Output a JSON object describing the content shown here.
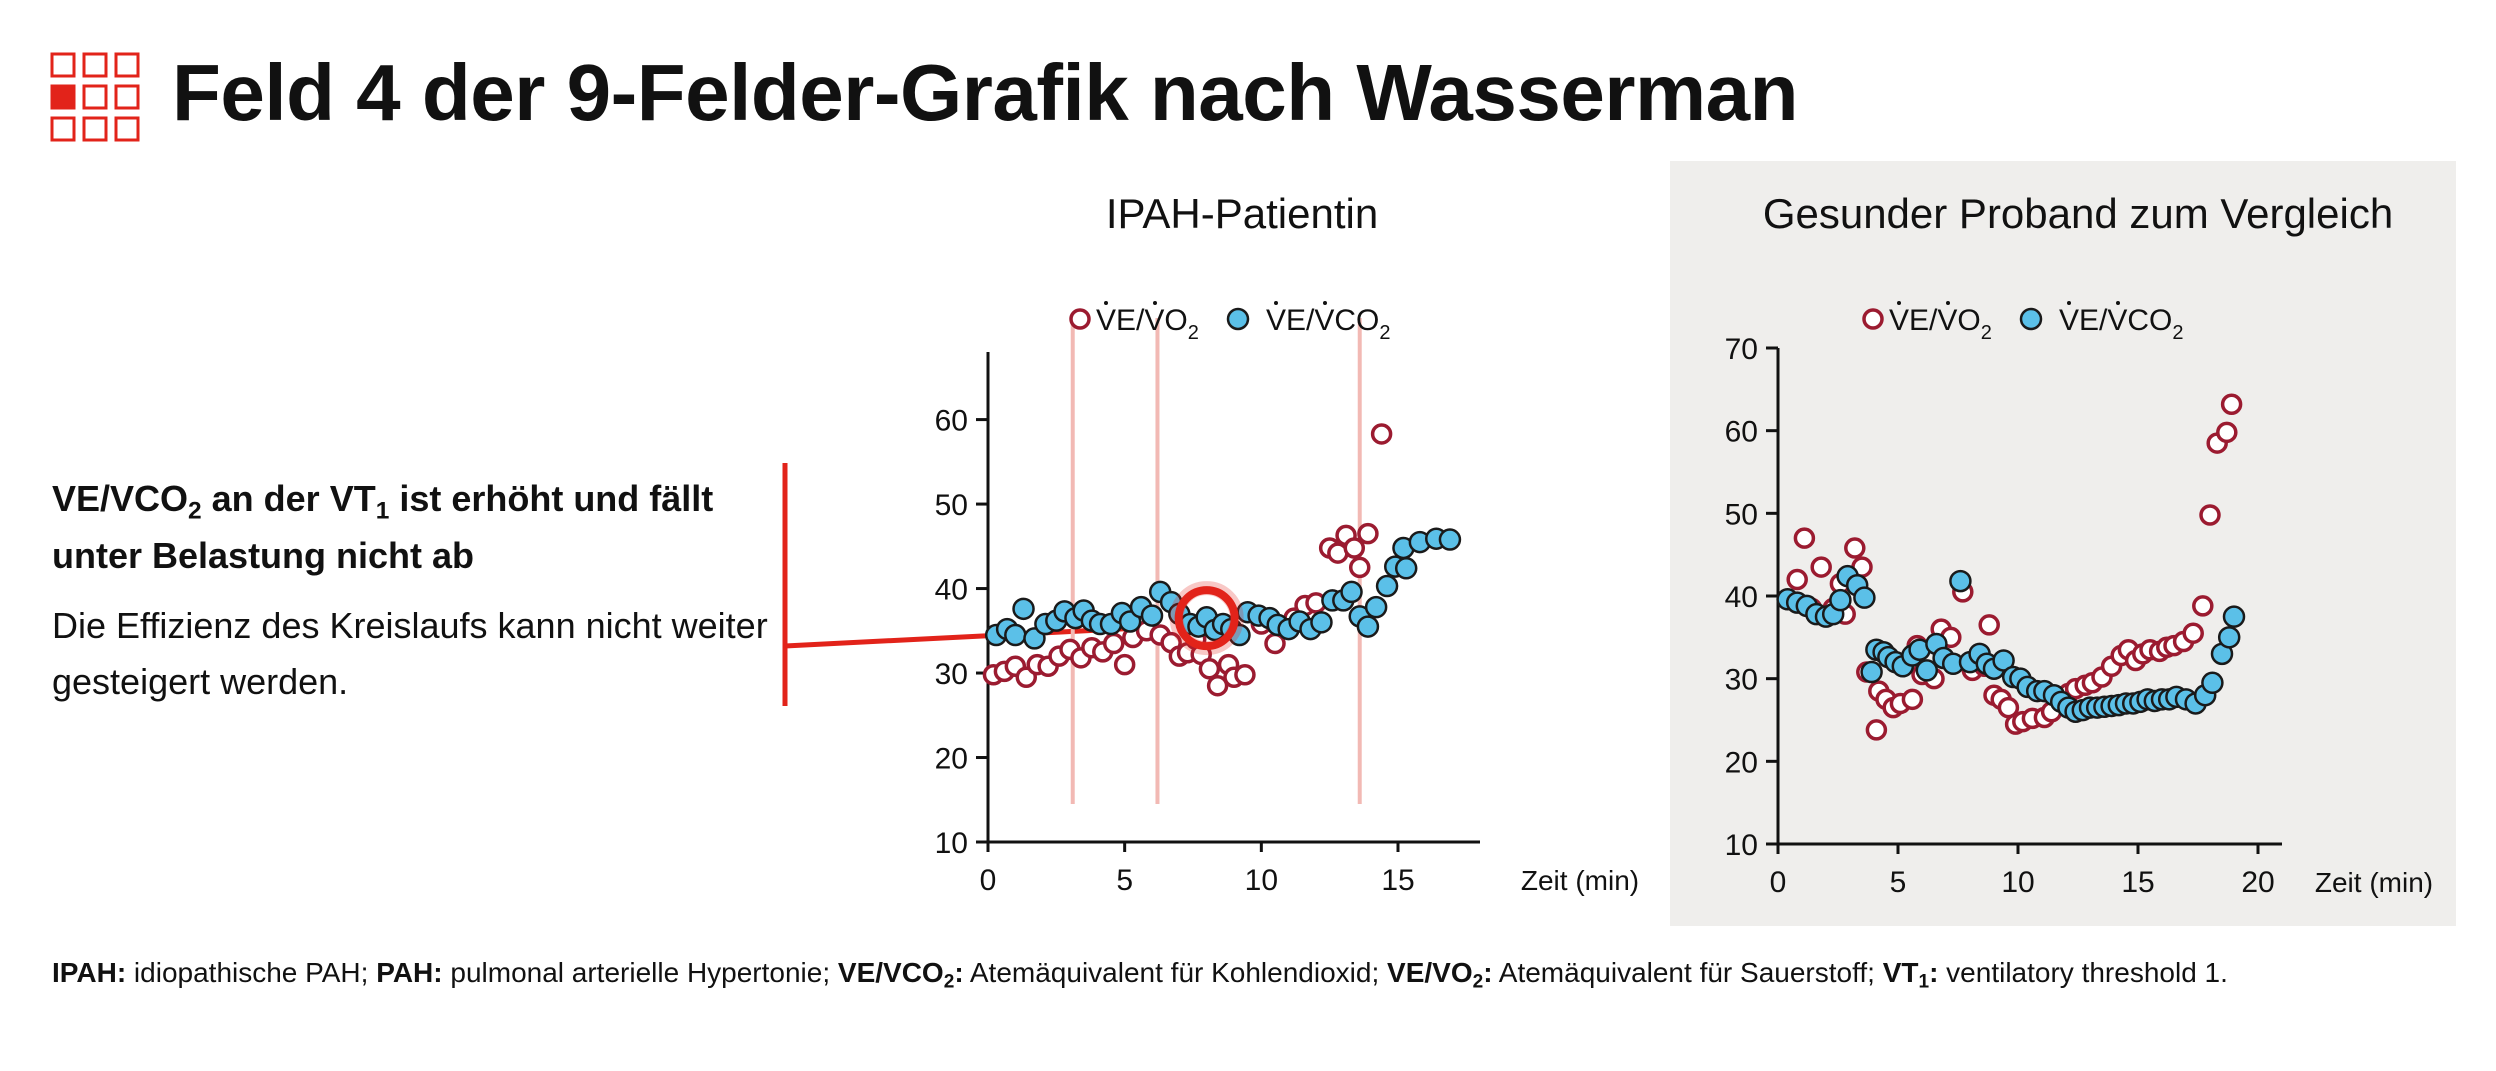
{
  "title": "Feld 4 der 9-Felder-Grafik nach Wasserman",
  "icon": "nine-field-grid-icon",
  "colors": {
    "accent_red": "#e2231a",
    "series_red": "#9b1b30",
    "series_blue": "#5bc0e8",
    "marker_outline": "#1a1a1a",
    "vt_line": "#f2b9b4",
    "healthy_panel_bg": "#efeeec"
  },
  "info": {
    "headline_pre": "VE/VCO",
    "headline_sub1": "2",
    "headline_mid": " an der VT",
    "headline_sub2": "1",
    "headline_post": " ist erhöht und fällt unter Belastung nicht ab",
    "description": "Die Effizienz des Kreislaufs kann nicht weiter gesteigert werden."
  },
  "footnote": {
    "items": [
      {
        "term": "IPAH:",
        "def": " idiopathische PAH;"
      },
      {
        "term": "PAH:",
        "def": " pulmonal arterielle Hypertonie;"
      },
      {
        "term": "VE/VCO",
        "sub": "2",
        "term_post": ":",
        "def": " Atemäquivalent für Kohlendioxid;"
      },
      {
        "term": "VE/VO",
        "sub": "2",
        "term_post": ":",
        "def": " Atemäquivalent für Sauerstoff;"
      },
      {
        "term": "VT",
        "sub": "1",
        "term_post": ":",
        "def": " ventilatory threshold 1."
      }
    ]
  },
  "chart_data": [
    {
      "type": "scatter",
      "title": "IPAH-Patientin",
      "xlabel": "Zeit (min)",
      "ylabel": "",
      "xlim": [
        0,
        18
      ],
      "ylim": [
        10,
        68
      ],
      "xticks": [
        0,
        5,
        10,
        15
      ],
      "yticks": [
        10,
        20,
        30,
        40,
        50,
        60
      ],
      "grid": false,
      "legend_position": "top",
      "vertical_lines_x": [
        3.1,
        6.2,
        13.6
      ],
      "highlight": {
        "x": 8.0,
        "y": 36.5
      },
      "series": [
        {
          "name": "V̇E/V̇O₂",
          "label_main": "VE/VO",
          "label_sub": "2",
          "style": "open-circle",
          "points": [
            [
              0.2,
              29.8
            ],
            [
              0.6,
              30.2
            ],
            [
              1.0,
              30.8
            ],
            [
              1.4,
              29.5
            ],
            [
              1.8,
              31.0
            ],
            [
              2.2,
              30.8
            ],
            [
              2.6,
              32.0
            ],
            [
              3.0,
              32.8
            ],
            [
              3.4,
              31.8
            ],
            [
              3.8,
              33.0
            ],
            [
              4.2,
              32.5
            ],
            [
              4.6,
              33.5
            ],
            [
              5.0,
              31.0
            ],
            [
              5.3,
              34.2
            ],
            [
              5.8,
              35.0
            ],
            [
              6.3,
              34.5
            ],
            [
              6.7,
              33.6
            ],
            [
              7.0,
              32.0
            ],
            [
              7.3,
              32.4
            ],
            [
              7.6,
              34.0
            ],
            [
              7.8,
              32.2
            ],
            [
              8.1,
              30.5
            ],
            [
              8.4,
              28.5
            ],
            [
              8.8,
              31.0
            ],
            [
              9.0,
              29.5
            ],
            [
              9.4,
              29.8
            ],
            [
              10.0,
              35.8
            ],
            [
              10.5,
              33.5
            ],
            [
              11.2,
              36.5
            ],
            [
              11.6,
              38.0
            ],
            [
              12.0,
              38.3
            ],
            [
              12.5,
              44.8
            ],
            [
              12.8,
              44.2
            ],
            [
              13.1,
              46.3
            ],
            [
              13.4,
              44.8
            ],
            [
              13.6,
              42.5
            ],
            [
              13.9,
              46.5
            ],
            [
              14.4,
              58.3
            ]
          ]
        },
        {
          "name": "V̇E/V̇CO₂",
          "label_main": "VE/VCO",
          "label_sub": "2",
          "style": "filled-circle",
          "points": [
            [
              0.3,
              34.5
            ],
            [
              0.7,
              35.2
            ],
            [
              1.0,
              34.5
            ],
            [
              1.3,
              37.6
            ],
            [
              1.7,
              34.1
            ],
            [
              2.1,
              35.8
            ],
            [
              2.5,
              36.2
            ],
            [
              2.8,
              37.3
            ],
            [
              3.2,
              36.5
            ],
            [
              3.5,
              37.4
            ],
            [
              3.8,
              36.2
            ],
            [
              4.1,
              35.8
            ],
            [
              4.5,
              35.8
            ],
            [
              4.9,
              37.1
            ],
            [
              5.2,
              36.1
            ],
            [
              5.6,
              37.8
            ],
            [
              6.0,
              36.8
            ],
            [
              6.3,
              39.6
            ],
            [
              6.7,
              38.4
            ],
            [
              7.0,
              37.0
            ],
            [
              7.4,
              35.8
            ],
            [
              7.7,
              35.5
            ],
            [
              8.0,
              36.6
            ],
            [
              8.3,
              35.1
            ],
            [
              8.6,
              35.8
            ],
            [
              8.9,
              35.2
            ],
            [
              9.2,
              34.5
            ],
            [
              9.5,
              37.2
            ],
            [
              9.9,
              36.8
            ],
            [
              10.3,
              36.5
            ],
            [
              10.6,
              35.7
            ],
            [
              11.0,
              35.2
            ],
            [
              11.4,
              36.1
            ],
            [
              11.8,
              35.2
            ],
            [
              12.2,
              36.0
            ],
            [
              12.6,
              38.6
            ],
            [
              13.0,
              38.6
            ],
            [
              13.3,
              39.6
            ],
            [
              13.6,
              36.7
            ],
            [
              13.9,
              35.5
            ],
            [
              14.2,
              37.8
            ],
            [
              14.6,
              40.3
            ],
            [
              14.9,
              42.6
            ],
            [
              15.3,
              42.4
            ],
            [
              15.2,
              44.8
            ],
            [
              15.8,
              45.5
            ],
            [
              16.4,
              45.9
            ],
            [
              16.9,
              45.8
            ]
          ]
        }
      ]
    },
    {
      "type": "scatter",
      "title": "Gesunder Proband zum Vergleich",
      "xlabel": "Zeit (min)",
      "ylabel": "",
      "xlim": [
        0,
        21
      ],
      "ylim": [
        10,
        70
      ],
      "xticks": [
        0,
        5,
        10,
        15,
        20
      ],
      "yticks": [
        10,
        20,
        30,
        40,
        50,
        60,
        70
      ],
      "grid": false,
      "legend_position": "top",
      "series": [
        {
          "name": "V̇E/V̇O₂",
          "label_main": "VE/VO",
          "label_sub": "2",
          "style": "open-circle",
          "points": [
            [
              0.8,
              42.0
            ],
            [
              1.1,
              47.0
            ],
            [
              1.4,
              38.5
            ],
            [
              1.8,
              43.5
            ],
            [
              2.0,
              37.5
            ],
            [
              2.3,
              38.5
            ],
            [
              2.6,
              41.5
            ],
            [
              2.8,
              37.8
            ],
            [
              3.2,
              45.8
            ],
            [
              3.5,
              43.5
            ],
            [
              3.7,
              30.8
            ],
            [
              4.1,
              23.8
            ],
            [
              4.2,
              28.5
            ],
            [
              4.5,
              27.5
            ],
            [
              4.8,
              26.5
            ],
            [
              5.1,
              27.0
            ],
            [
              5.6,
              27.5
            ],
            [
              5.8,
              34.0
            ],
            [
              6.0,
              30.5
            ],
            [
              6.5,
              30.0
            ],
            [
              6.8,
              36.0
            ],
            [
              7.2,
              35.0
            ],
            [
              7.7,
              40.5
            ],
            [
              8.1,
              31.0
            ],
            [
              8.6,
              31.5
            ],
            [
              8.8,
              36.5
            ],
            [
              9.0,
              28.0
            ],
            [
              9.3,
              27.5
            ],
            [
              9.6,
              26.5
            ],
            [
              9.9,
              24.5
            ],
            [
              10.2,
              24.8
            ],
            [
              10.6,
              25.2
            ],
            [
              11.1,
              25.3
            ],
            [
              11.4,
              26.0
            ],
            [
              11.8,
              27.2
            ],
            [
              12.1,
              28.2
            ],
            [
              12.4,
              28.8
            ],
            [
              12.8,
              29.2
            ],
            [
              13.1,
              29.5
            ],
            [
              13.5,
              30.2
            ],
            [
              13.9,
              31.5
            ],
            [
              14.3,
              32.8
            ],
            [
              14.6,
              33.5
            ],
            [
              14.9,
              32.2
            ],
            [
              15.2,
              33.0
            ],
            [
              15.5,
              33.5
            ],
            [
              15.9,
              33.3
            ],
            [
              16.2,
              33.8
            ],
            [
              16.5,
              34.0
            ],
            [
              16.9,
              34.5
            ],
            [
              17.3,
              35.5
            ],
            [
              17.7,
              38.8
            ],
            [
              18.0,
              49.8
            ],
            [
              18.3,
              58.5
            ],
            [
              18.7,
              59.8
            ],
            [
              18.9,
              63.2
            ]
          ]
        },
        {
          "name": "V̇E/V̇CO₂",
          "label_main": "VE/VCO",
          "label_sub": "2",
          "style": "filled-circle",
          "points": [
            [
              0.4,
              39.6
            ],
            [
              0.8,
              39.2
            ],
            [
              1.2,
              38.8
            ],
            [
              1.6,
              37.8
            ],
            [
              2.0,
              37.5
            ],
            [
              2.3,
              37.8
            ],
            [
              2.6,
              39.5
            ],
            [
              2.9,
              42.4
            ],
            [
              3.3,
              41.3
            ],
            [
              3.6,
              39.8
            ],
            [
              3.9,
              30.8
            ],
            [
              4.1,
              33.5
            ],
            [
              4.4,
              33.2
            ],
            [
              4.6,
              32.6
            ],
            [
              4.9,
              32.0
            ],
            [
              5.2,
              31.5
            ],
            [
              5.6,
              32.8
            ],
            [
              5.9,
              33.5
            ],
            [
              6.2,
              31.0
            ],
            [
              6.6,
              34.2
            ],
            [
              6.9,
              32.5
            ],
            [
              7.3,
              31.8
            ],
            [
              7.6,
              41.8
            ],
            [
              8.0,
              32.0
            ],
            [
              8.4,
              33.0
            ],
            [
              8.7,
              31.8
            ],
            [
              9.0,
              31.2
            ],
            [
              9.4,
              32.2
            ],
            [
              9.8,
              30.2
            ],
            [
              10.1,
              30.0
            ],
            [
              10.4,
              29.0
            ],
            [
              10.8,
              28.5
            ],
            [
              11.1,
              28.5
            ],
            [
              11.5,
              28.0
            ],
            [
              11.8,
              27.2
            ],
            [
              12.1,
              26.5
            ],
            [
              12.4,
              26.0
            ],
            [
              12.7,
              26.2
            ],
            [
              13.0,
              26.5
            ],
            [
              13.3,
              26.5
            ],
            [
              13.6,
              26.6
            ],
            [
              13.9,
              26.7
            ],
            [
              14.2,
              26.8
            ],
            [
              14.5,
              27.0
            ],
            [
              14.8,
              27.0
            ],
            [
              15.1,
              27.2
            ],
            [
              15.4,
              27.5
            ],
            [
              15.7,
              27.3
            ],
            [
              16.0,
              27.5
            ],
            [
              16.3,
              27.5
            ],
            [
              16.6,
              27.8
            ],
            [
              17.0,
              27.5
            ],
            [
              17.4,
              27.0
            ],
            [
              17.8,
              28.0
            ],
            [
              18.1,
              29.5
            ],
            [
              18.5,
              33.0
            ],
            [
              18.8,
              35.0
            ],
            [
              19.0,
              37.5
            ]
          ]
        }
      ]
    }
  ]
}
